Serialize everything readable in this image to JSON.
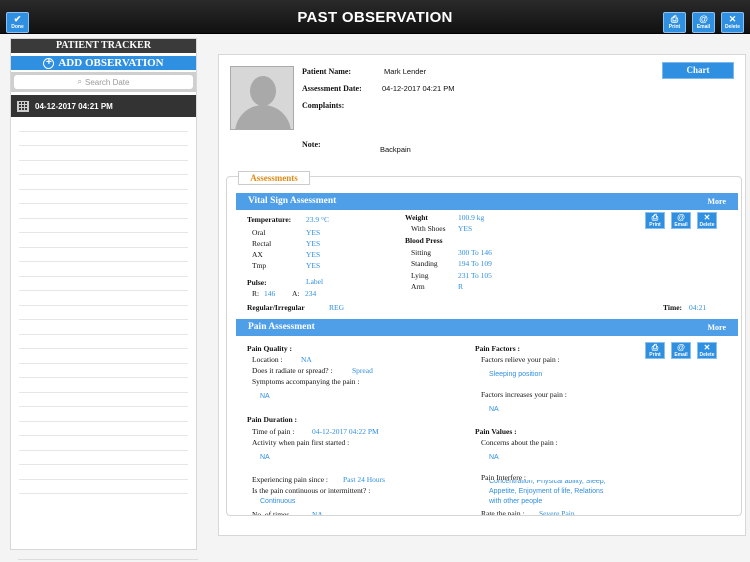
{
  "header": {
    "title": "PAST OBSERVATION",
    "done_label": "Done",
    "print_label": "Print",
    "email_label": "Email",
    "delete_label": "Delete"
  },
  "sidebar": {
    "title": "PATIENT TRACKER",
    "add_label": "ADD OBSERVATION",
    "search_placeholder": "Search Date",
    "items": [
      {
        "label": "04-12-2017 04:21 PM"
      }
    ]
  },
  "patient": {
    "name_label": "Patient Name:",
    "name": "Mark Lender",
    "date_label": "Assessment Date:",
    "date": "04-12-2017 04:21 PM",
    "complaints_label": "Complaints:",
    "note_label": "Note:",
    "note": "Backpain",
    "chart_button": "Chart"
  },
  "assessments_tab": "Assessments",
  "vital": {
    "title": "Vital Sign Assessment",
    "more": "More",
    "temperature_label": "Temperature:",
    "temperature": "23.9 °C",
    "rows": [
      {
        "label": "Oral",
        "value": "YES"
      },
      {
        "label": "Rectal",
        "value": "YES"
      },
      {
        "label": "AX",
        "value": "YES"
      },
      {
        "label": "Tmp",
        "value": "YES"
      }
    ],
    "pulse_label": "Pulse:",
    "pulse": "Label",
    "r_label": "R:",
    "r_value": "146",
    "a_label": "A:",
    "a_value": "234",
    "regular_label": "Regular/Irregular",
    "regular_value": "REG",
    "weight_label": "Weight",
    "weight": "100.9 kg",
    "shoes_label": "With Shoes",
    "shoes": "YES",
    "bp_label": "Blood Press",
    "bp_rows": [
      {
        "label": "Sitting",
        "value": "300 To 146"
      },
      {
        "label": "Standing",
        "value": "194 To 109"
      },
      {
        "label": "Lying",
        "value": "231 To 105"
      },
      {
        "label": "Arm",
        "value": "R"
      }
    ],
    "time_label": "Time:",
    "time": "04:21"
  },
  "pain": {
    "title": "Pain Assessment",
    "more": "More",
    "quality_label": "Pain Quality :",
    "location_label": "Location :",
    "location": "NA",
    "radiate_label": "Does it radiate or spread? :",
    "radiate": "Spread",
    "symptoms_label": "Symptoms accompanying the pain :",
    "symptoms": "NA",
    "duration_label": "Pain Duration :",
    "time_label": "Time of pain :",
    "time": "04-12-2017 04:22 PM",
    "activity_label": "Activity when pain first started :",
    "activity": "NA",
    "since_label": "Experiencing pain since :",
    "since": "Past 24 Hours",
    "continuous_label": "Is the pain continuous or intermittent? :",
    "continuous": "Continuous",
    "cut_label": "No. of times",
    "cut_value": "NA",
    "factors_label": "Pain Factors :",
    "relieve_label": "Factors relieve your pain :",
    "relieve": "Sleeping position",
    "increase_label": "Factors increases your pain :",
    "increase": "NA",
    "values_label": "Pain Values :",
    "concerns_label": "Concerns about the pain :",
    "concerns": "NA",
    "interfere_label": "Pain Interfere :",
    "interfere_1": "Concentration, Physical ability, Sleep,",
    "interfere_2": "Appetite, Enjoyment of life, Relations",
    "interfere_3": "with other people",
    "rate_label": "Rate the pain :",
    "rate": "Severe Pain"
  },
  "colors": {
    "accent": "#2f8fe0",
    "header": "#4f9fe8",
    "tab_orange": "#e38b16",
    "topbar": "#1a1a1a"
  }
}
